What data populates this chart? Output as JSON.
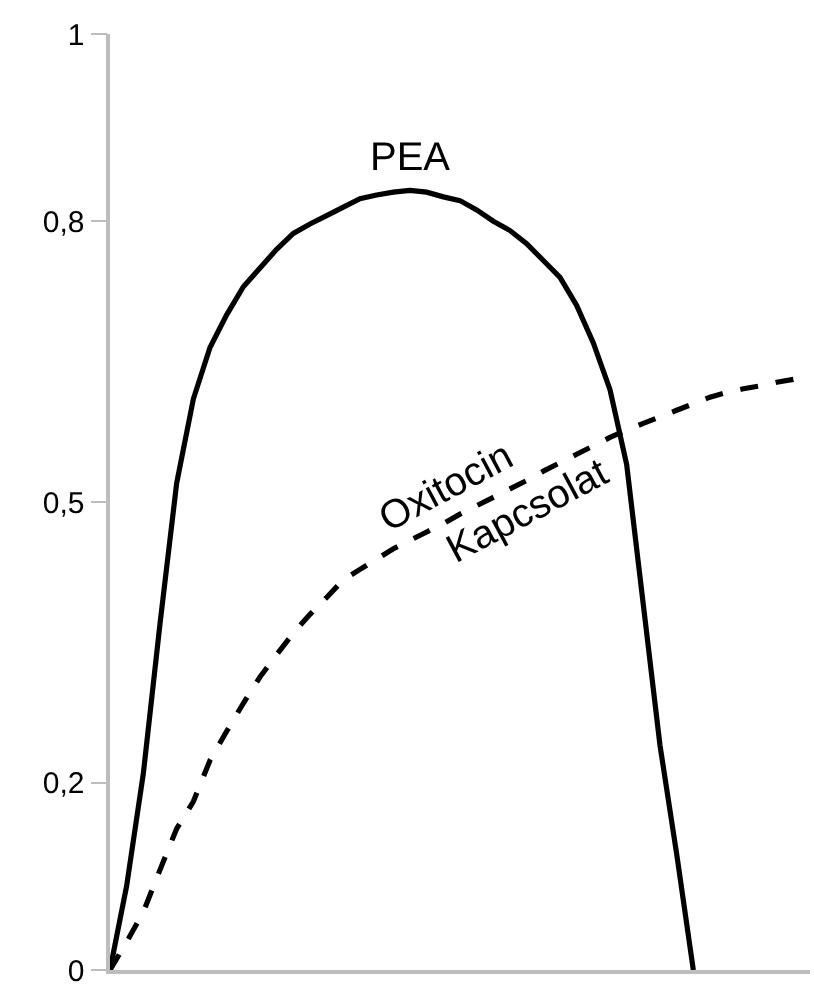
{
  "chart_data": {
    "type": "line",
    "categories": [
      null,
      null,
      null,
      null,
      null,
      null,
      null,
      null,
      null,
      null,
      null,
      null,
      null,
      null,
      null,
      null,
      null,
      null,
      null,
      null,
      null,
      null,
      null,
      null,
      null,
      null,
      null,
      null,
      null,
      null,
      null,
      null,
      null,
      null,
      null,
      null,
      null,
      null,
      null,
      null,
      null,
      null,
      null
    ],
    "ylim": [
      0,
      1
    ],
    "yticks": [
      {
        "value": 0,
        "label": "0"
      },
      {
        "value": 0.2,
        "label": "0,2"
      },
      {
        "value": 0.5,
        "label": "0,5"
      },
      {
        "value": 0.8,
        "label": "0,8"
      },
      {
        "value": 1,
        "label": "1"
      }
    ],
    "tick_labels": "y",
    "legend": false,
    "marker": "none",
    "series": [
      {
        "name": "PEA",
        "color": "#000000",
        "line_style": "solid",
        "values": [
          0,
          0.09,
          0.21,
          0.37,
          0.52,
          0.61,
          0.665,
          0.7,
          0.73,
          0.75,
          0.77,
          0.787,
          0.797,
          0.806,
          0.815,
          0.824,
          0.828,
          0.831,
          0.833,
          0.831,
          0.826,
          0.822,
          0.812,
          0.8,
          0.79,
          0.776,
          0.758,
          0.74,
          0.71,
          0.67,
          0.62,
          0.54,
          0.39,
          0.24,
          0.124,
          0,
          null,
          null,
          null,
          null,
          null,
          null,
          null
        ]
      },
      {
        "name": "Oxitocin Kapcsolat",
        "color": "#000000",
        "line_style": "dashed",
        "values": [
          0,
          0.03,
          0.062,
          0.107,
          0.151,
          0.18,
          0.224,
          0.255,
          0.285,
          0.313,
          0.337,
          0.36,
          0.38,
          0.398,
          0.417,
          0.428,
          0.439,
          0.45,
          0.459,
          0.468,
          0.477,
          0.487,
          0.496,
          0.505,
          0.514,
          0.523,
          0.533,
          0.542,
          0.551,
          0.56,
          0.569,
          0.577,
          0.584,
          0.591,
          0.598,
          0.605,
          0.612,
          0.617,
          0.621,
          0.624,
          0.628,
          0.631,
          0.635
        ]
      }
    ]
  }
}
